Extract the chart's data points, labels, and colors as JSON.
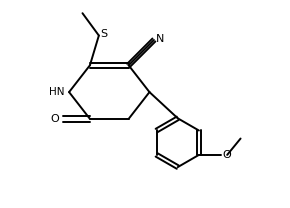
{
  "line_color": "#000000",
  "background_color": "#ffffff",
  "line_width": 1.4,
  "fig_width": 2.9,
  "fig_height": 2.08,
  "dpi": 100,
  "xlim": [
    0,
    9.5
  ],
  "ylim": [
    0,
    6.8
  ]
}
